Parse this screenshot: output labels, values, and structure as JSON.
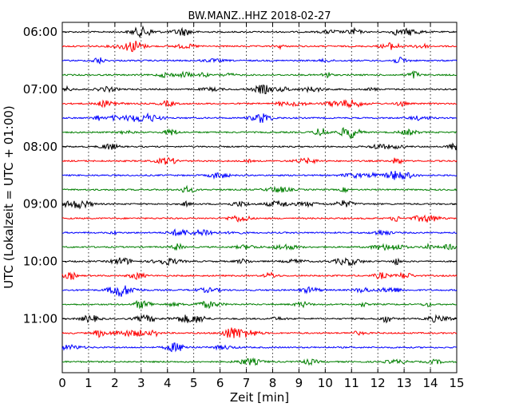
{
  "chart_data": {
    "type": "line",
    "title": "BW.MANZ..HHZ 2018-02-27",
    "xlabel": "Zeit  [min]",
    "ylabel": "UTC (Lokalzeit = UTC + 01:00)",
    "xlim": [
      0,
      15
    ],
    "x_ticks": [
      "0",
      "1",
      "2",
      "3",
      "4",
      "5",
      "6",
      "7",
      "8",
      "9",
      "10",
      "11",
      "12",
      "13",
      "14",
      "15"
    ],
    "y_tick_labels": [
      "06:00",
      "07:00",
      "08:00",
      "09:00",
      "10:00",
      "11:00"
    ],
    "grid_x": true,
    "trace_interval_minutes": 15,
    "trace_colors": [
      "#000000",
      "#ff0000",
      "#0000ff",
      "#007f00"
    ],
    "trace_count": 24,
    "trace_start": "06:00",
    "trace_end": "11:45"
  }
}
